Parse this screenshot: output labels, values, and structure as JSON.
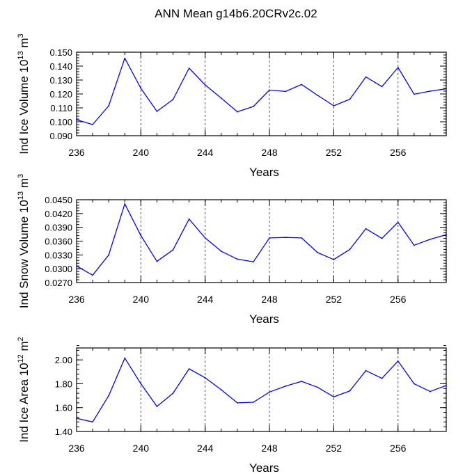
{
  "title": "ANN Mean g14b6.20CRv2c.02",
  "chart_data": [
    {
      "type": "line",
      "ylabel": "Ind Ice Volume",
      "ylabel_unit_base": "10",
      "ylabel_unit_exp": "13",
      "ylabel_unit_rest": " m",
      "ylabel_unit_power": "3",
      "xlabel": "Years",
      "xlim": [
        236,
        259
      ],
      "ylim": [
        0.09,
        0.15
      ],
      "x_ticks": [
        236,
        240,
        244,
        248,
        252,
        256
      ],
      "y_ticks": [
        0.09,
        0.1,
        0.11,
        0.12,
        0.13,
        0.14,
        0.15
      ],
      "y_tick_labels": [
        "0.090",
        "0.100",
        "0.110",
        "0.120",
        "0.130",
        "0.140",
        "0.150"
      ],
      "y_minor_step": 0.002,
      "grid_x": [
        240,
        244,
        248,
        252,
        256
      ],
      "series": [
        {
          "name": "Ind Ice Volume",
          "color": "#0000ff",
          "x": [
            236,
            237,
            238,
            239,
            240,
            241,
            242,
            243,
            244,
            245,
            246,
            247,
            248,
            249,
            250,
            251,
            252,
            253,
            254,
            255,
            256,
            257,
            258,
            259
          ],
          "values": [
            0.1015,
            0.098,
            0.1115,
            0.1457,
            0.124,
            0.1075,
            0.116,
            0.1385,
            0.1265,
            0.117,
            0.1072,
            0.111,
            0.1228,
            0.1218,
            0.1268,
            0.119,
            0.1115,
            0.1162,
            0.1322,
            0.1253,
            0.139,
            0.1198,
            0.122,
            0.1237
          ]
        }
      ]
    },
    {
      "type": "line",
      "ylabel": "Ind Snow Volume",
      "ylabel_unit_base": "10",
      "ylabel_unit_exp": "13",
      "ylabel_unit_rest": " m",
      "ylabel_unit_power": "3",
      "xlabel": "Years",
      "xlim": [
        236,
        259
      ],
      "ylim": [
        0.027,
        0.045
      ],
      "x_ticks": [
        236,
        240,
        244,
        248,
        252,
        256
      ],
      "y_ticks": [
        0.027,
        0.03,
        0.033,
        0.036,
        0.039,
        0.042,
        0.045
      ],
      "y_tick_labels": [
        "0.0270",
        "0.0300",
        "0.0330",
        "0.0360",
        "0.0390",
        "0.0420",
        "0.0450"
      ],
      "y_minor_step": 0.0006,
      "grid_x": [
        240,
        244,
        248,
        252,
        256
      ],
      "series": [
        {
          "name": "Ind Snow Volume",
          "color": "#0000ff",
          "x": [
            236,
            237,
            238,
            239,
            240,
            241,
            242,
            243,
            244,
            245,
            246,
            247,
            248,
            249,
            250,
            251,
            252,
            253,
            254,
            255,
            256,
            257,
            258,
            259
          ],
          "values": [
            0.0306,
            0.0286,
            0.033,
            0.0441,
            0.0372,
            0.0316,
            0.0341,
            0.0408,
            0.0367,
            0.0338,
            0.0321,
            0.0315,
            0.0367,
            0.0368,
            0.0367,
            0.0335,
            0.032,
            0.0342,
            0.0387,
            0.0366,
            0.0401,
            0.0351,
            0.0364,
            0.0374
          ]
        }
      ]
    },
    {
      "type": "line",
      "ylabel": "Ind Ice Area",
      "ylabel_unit_base": "10",
      "ylabel_unit_exp": "12",
      "ylabel_unit_rest": " m",
      "ylabel_unit_power": "2",
      "xlabel": "Years",
      "xlim": [
        236,
        259
      ],
      "ylim": [
        1.4,
        2.1
      ],
      "x_ticks": [
        236,
        240,
        244,
        248,
        252,
        256
      ],
      "y_ticks": [
        1.4,
        1.6,
        1.8,
        2.0
      ],
      "y_tick_labels": [
        "1.40",
        "1.60",
        "1.80",
        "2.00"
      ],
      "y_minor_step": 0.04,
      "grid_x": [
        240,
        244,
        248,
        252,
        256
      ],
      "series": [
        {
          "name": "Ind Ice Area",
          "color": "#0000ff",
          "x": [
            236,
            237,
            238,
            239,
            240,
            241,
            242,
            243,
            244,
            245,
            246,
            247,
            248,
            249,
            250,
            251,
            252,
            253,
            254,
            255,
            256,
            257,
            258,
            259
          ],
          "values": [
            1.51,
            1.48,
            1.7,
            2.015,
            1.8,
            1.61,
            1.72,
            1.925,
            1.85,
            1.75,
            1.64,
            1.645,
            1.73,
            1.78,
            1.82,
            1.77,
            1.69,
            1.74,
            1.91,
            1.845,
            1.99,
            1.8,
            1.735,
            1.785
          ]
        }
      ]
    }
  ]
}
